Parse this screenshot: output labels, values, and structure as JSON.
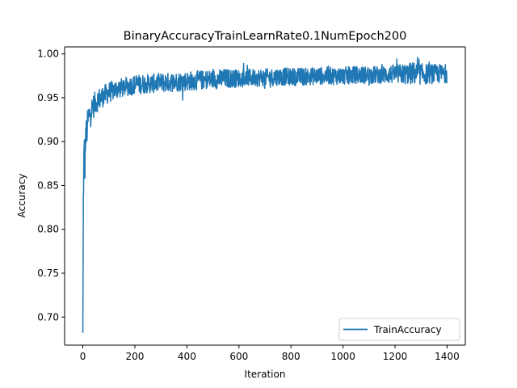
{
  "chart_data": {
    "type": "line",
    "title": "BinaryAccuracyTrainLearnRate0.1NumEpoch200",
    "xlabel": "Iteration",
    "ylabel": "Accuracy",
    "xlim": [
      -70,
      1470
    ],
    "ylim": [
      0.668,
      1.008
    ],
    "xticks": [
      0,
      200,
      400,
      600,
      800,
      1000,
      1200,
      1400
    ],
    "yticks": [
      0.7,
      0.75,
      0.8,
      0.85,
      0.9,
      0.95,
      1.0
    ],
    "xtick_labels": [
      "0",
      "200",
      "400",
      "600",
      "800",
      "1000",
      "1200",
      "1400"
    ],
    "ytick_labels": [
      "0.70",
      "0.75",
      "0.80",
      "0.85",
      "0.90",
      "0.95",
      "1.00"
    ],
    "legend_position": "lower-right",
    "grid": false,
    "series": [
      {
        "name": "TrainAccuracy",
        "color": "#1f77b4",
        "x": [
          0,
          2,
          4,
          6,
          8,
          10,
          15,
          20,
          25,
          30,
          40,
          50,
          60,
          80,
          100,
          130,
          160,
          200,
          250,
          300,
          350,
          400,
          450,
          500,
          550,
          600,
          650,
          700,
          750,
          800,
          850,
          900,
          950,
          1000,
          1050,
          1100,
          1150,
          1200,
          1250,
          1270,
          1300,
          1350,
          1400
        ],
        "y": [
          0.682,
          0.83,
          0.88,
          0.89,
          0.87,
          0.905,
          0.91,
          0.925,
          0.93,
          0.935,
          0.94,
          0.945,
          0.948,
          0.952,
          0.956,
          0.96,
          0.962,
          0.965,
          0.966,
          0.967,
          0.968,
          0.969,
          0.97,
          0.971,
          0.972,
          0.972,
          0.973,
          0.973,
          0.974,
          0.974,
          0.974,
          0.975,
          0.975,
          0.975,
          0.976,
          0.976,
          0.976,
          0.977,
          0.977,
          0.978,
          0.977,
          0.977,
          0.978
        ],
        "noise_band": [
          0.0,
          0.01,
          0.02,
          0.02,
          0.02,
          0.02,
          0.018,
          0.016,
          0.015,
          0.014,
          0.014,
          0.013,
          0.013,
          0.012,
          0.012,
          0.011,
          0.011,
          0.011,
          0.011,
          0.011,
          0.011,
          0.011,
          0.011,
          0.011,
          0.011,
          0.01,
          0.01,
          0.01,
          0.01,
          0.01,
          0.01,
          0.01,
          0.01,
          0.01,
          0.01,
          0.01,
          0.01,
          0.011,
          0.012,
          0.013,
          0.012,
          0.011,
          0.011
        ]
      }
    ]
  }
}
